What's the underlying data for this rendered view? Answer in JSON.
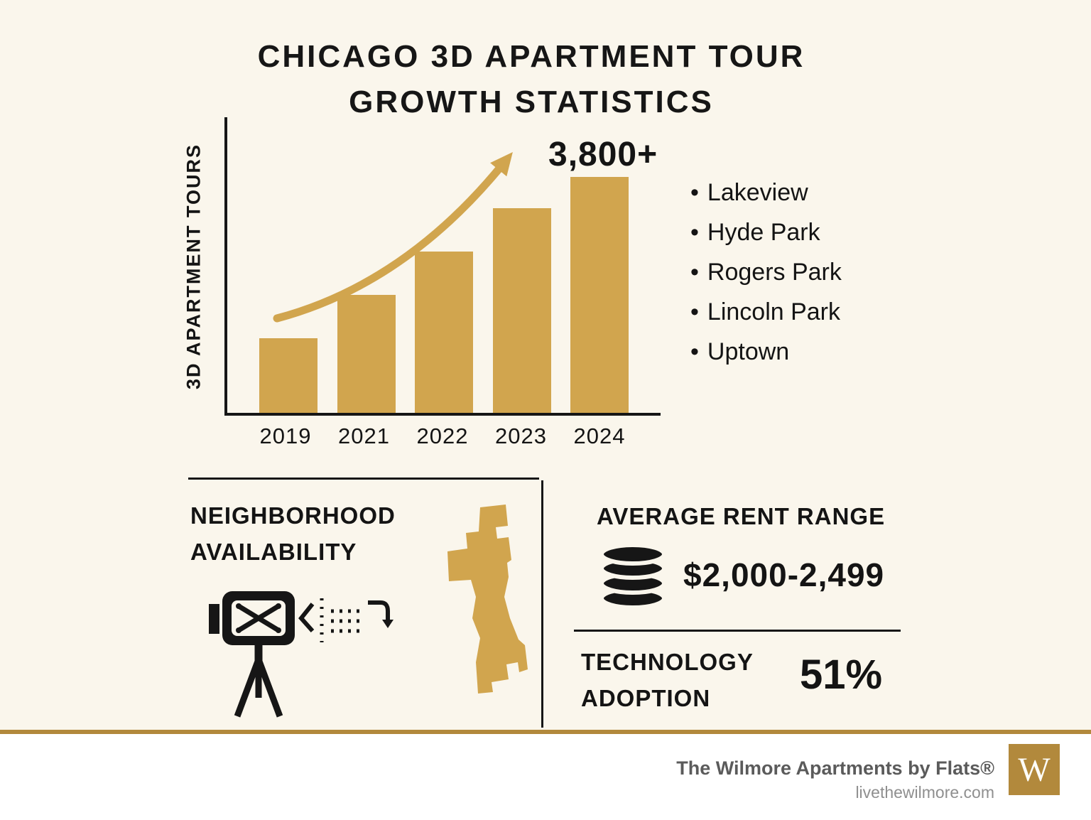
{
  "title": {
    "line1": "CHICAGO 3D APARTMENT TOUR",
    "line2": "GROWTH STATISTICS"
  },
  "chart_data": {
    "type": "bar",
    "categories": [
      "2019",
      "2021",
      "2022",
      "2023",
      "2024"
    ],
    "values": [
      1200,
      1900,
      2600,
      3300,
      3800
    ],
    "annotation": "3,800+",
    "title": "",
    "xlabel": "",
    "ylabel": "3D APARTMENT TOURS",
    "ylim": [
      0,
      4000
    ],
    "grid": false,
    "legend": false,
    "bar_color": "#D1A54E"
  },
  "neighborhoods": [
    "Lakeview",
    "Hyde Park",
    "Rogers Park",
    "Lincoln Park",
    "Uptown"
  ],
  "neighborhood_section": {
    "title_line1": "NEIGHBORHOOD",
    "title_line2": "AVAILABILITY"
  },
  "rent_section": {
    "title": "AVERAGE RENT RANGE",
    "value": "$2,000-2,499"
  },
  "tech_section": {
    "title_line1": "TECHNOLOGY",
    "title_line2": "ADOPTION",
    "value": "51%"
  },
  "footer": {
    "brand": "The Wilmore Apartments by Flats®",
    "website": "livethewilmore.com",
    "logo_letter": "W"
  },
  "icons": {
    "bullet": "•",
    "camera": "movie-camera-on-tripod",
    "coins": "coin-stack",
    "map": "chicago-city-silhouette",
    "arrow": "growth-trend-arrow"
  },
  "colors": {
    "gold": "#D1A54E",
    "goldDark": "#B2893C",
    "background": "#FAF6EC",
    "footerBg": "#FFFFFF",
    "text": "#141414",
    "brandText": "#5B5B5B",
    "urlText": "#8F8F8F"
  }
}
